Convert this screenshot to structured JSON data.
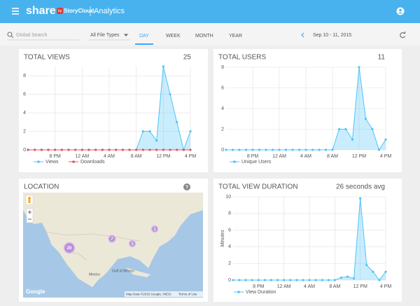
{
  "header": {
    "brand": "share",
    "brand_by": "by",
    "brand_sub": "StoryCloud",
    "title": "Analytics"
  },
  "toolbar": {
    "search_placeholder": "Global Search",
    "file_types": "All File Types",
    "tabs": [
      "DAY",
      "WEEK",
      "MONTH",
      "YEAR"
    ],
    "active_tab": 0,
    "date_range": "Sep 10 - 11, 2015"
  },
  "chart_data": [
    {
      "type": "line",
      "title": "TOTAL VIEWS",
      "total": 25,
      "categories": [
        null,
        null,
        null,
        null,
        "8 PM",
        null,
        null,
        null,
        "12 AM",
        null,
        null,
        null,
        "4 AM",
        null,
        null,
        null,
        "8 AM",
        null,
        null,
        null,
        "12 PM",
        null,
        null,
        null,
        "4 PM"
      ],
      "series": [
        {
          "name": "Views",
          "color": "#4fc3f7",
          "area": true,
          "values": [
            0,
            0,
            0,
            0,
            0,
            0,
            0,
            0,
            0,
            0,
            0,
            0,
            0,
            0,
            0,
            0,
            0,
            2,
            2,
            1,
            9,
            6,
            3,
            0,
            2
          ]
        },
        {
          "name": "Downloads",
          "color": "#e9505e",
          "values": [
            0,
            0,
            0,
            0,
            0,
            0,
            0,
            0,
            0,
            0,
            0,
            0,
            0,
            0,
            0,
            0,
            0,
            0,
            0,
            0,
            0,
            0,
            0,
            0,
            0
          ]
        }
      ],
      "ylim": [
        0,
        9
      ],
      "yticks": [
        0,
        2,
        4,
        6,
        8
      ],
      "grid": true
    },
    {
      "type": "line",
      "title": "TOTAL USERS",
      "total": 11,
      "categories": [
        null,
        null,
        null,
        null,
        "8 PM",
        null,
        null,
        null,
        "12 AM",
        null,
        null,
        null,
        "4 AM",
        null,
        null,
        null,
        "8 AM",
        null,
        null,
        null,
        "12 PM",
        null,
        null,
        null,
        "4 PM"
      ],
      "series": [
        {
          "name": "Unique Users",
          "color": "#4fc3f7",
          "area": true,
          "values": [
            0,
            0,
            0,
            0,
            0,
            0,
            0,
            0,
            0,
            0,
            0,
            0,
            0,
            0,
            0,
            0,
            0,
            2,
            2,
            1,
            8,
            3,
            2,
            0,
            1
          ]
        }
      ],
      "ylim": [
        0,
        8
      ],
      "yticks": [
        0,
        2,
        4,
        6,
        8
      ],
      "grid": true
    },
    {
      "type": "line",
      "title": "TOTAL VIEW DURATION",
      "total": "26 seconds avg",
      "y_label": "Minutes",
      "categories": [
        null,
        null,
        null,
        null,
        "8 PM",
        null,
        null,
        null,
        "12 AM",
        null,
        null,
        null,
        "4 AM",
        null,
        null,
        null,
        "8 AM",
        null,
        null,
        null,
        "12 PM",
        null,
        null,
        null,
        "4 PM"
      ],
      "series": [
        {
          "name": "View Duration",
          "color": "#4fc3f7",
          "area": true,
          "values": [
            0,
            0,
            0,
            0,
            0,
            0,
            0,
            0,
            0,
            0,
            0,
            0,
            0,
            0,
            0,
            0,
            0,
            0.3,
            0.4,
            0.2,
            9.8,
            1.8,
            1,
            0,
            1
          ]
        }
      ],
      "ylim": [
        0,
        10
      ],
      "yticks": [
        0,
        2,
        4,
        6,
        8,
        10
      ],
      "grid": true
    }
  ],
  "location": {
    "title": "LOCATION",
    "clusters": [
      {
        "label": "20"
      },
      {
        "label": "7"
      },
      {
        "label": "1"
      },
      {
        "label": "1"
      }
    ],
    "places": [
      "Mexico",
      "Gulf of Mexico"
    ],
    "attribution": "Map Data ©2015 Google, INEGI",
    "terms": "Terms of Use",
    "logo": "Google"
  }
}
